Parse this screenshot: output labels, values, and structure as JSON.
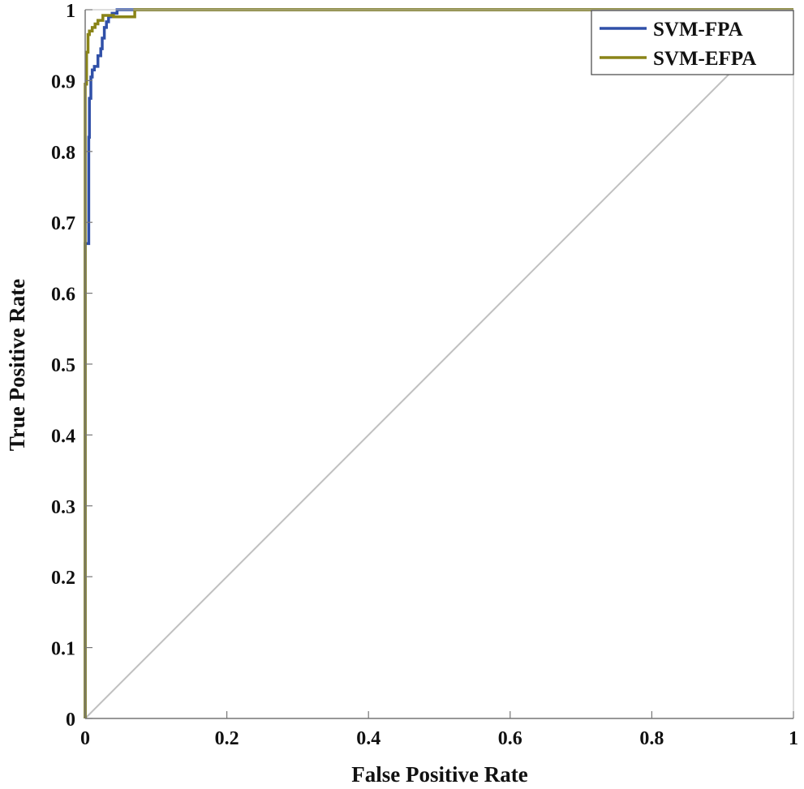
{
  "chart_data": {
    "type": "line",
    "title": "",
    "xlabel": "False Positive Rate",
    "ylabel": "True Positive Rate",
    "xlim": [
      0,
      1
    ],
    "ylim": [
      0,
      1
    ],
    "xticks": [
      "0",
      "0.2",
      "0.4",
      "0.6",
      "0.8",
      "1"
    ],
    "yticks": [
      "0",
      "0.1",
      "0.2",
      "0.3",
      "0.4",
      "0.5",
      "0.6",
      "0.7",
      "0.8",
      "0.9",
      "1"
    ],
    "grid": false,
    "legend_position": "top-right",
    "series": [
      {
        "name": "SVM-FPA",
        "color": "#3050a8",
        "x": [
          0,
          0,
          0.005,
          0.005,
          0.006,
          0.006,
          0.008,
          0.008,
          0.01,
          0.01,
          0.013,
          0.013,
          0.018,
          0.018,
          0.022,
          0.022,
          0.024,
          0.024,
          0.027,
          0.027,
          0.03,
          0.03,
          0.033,
          0.033,
          0.038,
          0.038,
          0.045,
          0.045,
          0.065,
          1
        ],
        "y": [
          0,
          0.67,
          0.67,
          0.82,
          0.82,
          0.875,
          0.875,
          0.905,
          0.905,
          0.915,
          0.915,
          0.92,
          0.92,
          0.935,
          0.935,
          0.945,
          0.945,
          0.96,
          0.96,
          0.975,
          0.975,
          0.983,
          0.983,
          0.99,
          0.99,
          0.995,
          0.995,
          1,
          1,
          1
        ]
      },
      {
        "name": "SVM-EFPA",
        "color": "#8a8418",
        "x": [
          0,
          0,
          0.002,
          0.002,
          0.004,
          0.004,
          0.006,
          0.006,
          0.01,
          0.01,
          0.014,
          0.014,
          0.018,
          0.018,
          0.025,
          0.025,
          0.04,
          0.04,
          0.07,
          0.07,
          1
        ],
        "y": [
          0,
          0.895,
          0.895,
          0.94,
          0.94,
          0.965,
          0.965,
          0.97,
          0.97,
          0.975,
          0.975,
          0.98,
          0.98,
          0.985,
          0.985,
          0.992,
          0.992,
          0.99,
          0.99,
          1,
          1
        ]
      },
      {
        "name": "",
        "color": "#c0c0c0",
        "x": [
          0,
          1
        ],
        "y": [
          0,
          1
        ]
      }
    ]
  }
}
